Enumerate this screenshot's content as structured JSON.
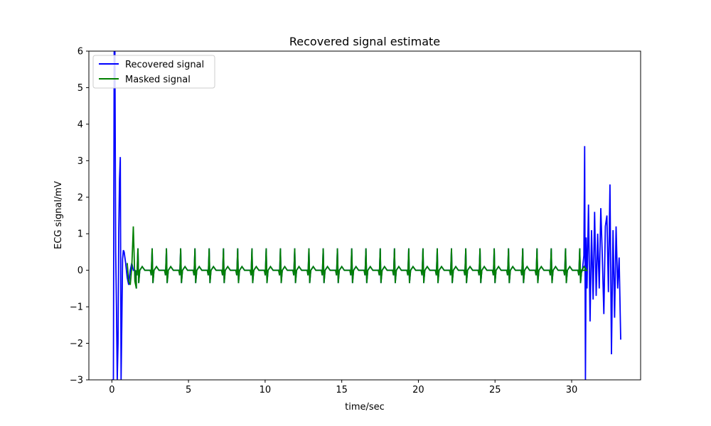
{
  "chart_data": {
    "type": "line",
    "title": "Recovered signal estimate",
    "xlabel": "time/sec",
    "ylabel": "ECG signal/mV",
    "xlim": [
      -1.5,
      34.5
    ],
    "ylim": [
      -3,
      6
    ],
    "xticks": [
      0,
      5,
      10,
      15,
      20,
      25,
      30
    ],
    "xtick_labels": [
      "0",
      "5",
      "10",
      "15",
      "20",
      "25",
      "30"
    ],
    "yticks": [
      -3,
      -2,
      -1,
      0,
      1,
      2,
      3,
      4,
      5,
      6
    ],
    "ytick_labels": [
      "−3",
      "−2",
      "−1",
      "0",
      "1",
      "2",
      "3",
      "4",
      "5",
      "6"
    ],
    "legend_position": "top-left",
    "grid": {
      "major_dotted_red_at_integers": true,
      "minor_red_every": 0.5,
      "fine_pink_every": 0.1,
      "x_range": [
        0,
        33.2
      ],
      "major_color": "#ff0000",
      "minor_color": "#ff9a9a",
      "fine_color": "#ffd6d6"
    },
    "series": [
      {
        "name": "Recovered signal",
        "color": "#0000ff",
        "x": [
          0.0,
          0.1,
          0.15,
          0.2,
          0.25,
          0.3,
          0.35,
          0.4,
          0.45,
          0.5,
          0.55,
          0.6,
          0.65,
          0.7,
          0.75,
          0.8,
          0.9,
          1.0,
          1.1,
          1.2,
          1.3,
          1.4,
          1.5,
          30.5,
          30.6,
          30.7,
          30.8,
          30.85,
          30.9,
          30.95,
          31.0,
          31.1,
          31.2,
          31.3,
          31.4,
          31.5,
          31.6,
          31.7,
          31.8,
          31.9,
          32.0,
          32.1,
          32.2,
          32.3,
          32.4,
          32.5,
          32.6,
          32.7,
          32.8,
          32.9,
          33.0,
          33.1,
          33.2
        ],
        "y": [
          -3.0,
          -3.0,
          6.0,
          6.0,
          0.5,
          -1.0,
          -3.0,
          -2.0,
          1.0,
          2.5,
          3.1,
          -3.0,
          -1.5,
          0.3,
          0.55,
          0.5,
          0.2,
          -0.2,
          -0.4,
          0.0,
          0.2,
          0.0,
          0.0,
          0.0,
          -0.1,
          0.0,
          0.4,
          3.4,
          -3.0,
          0.9,
          -0.5,
          1.8,
          -1.4,
          1.1,
          -0.8,
          1.6,
          -0.7,
          1.0,
          -0.5,
          1.7,
          0.4,
          -1.2,
          1.2,
          1.5,
          -0.6,
          2.35,
          -2.3,
          1.1,
          -1.3,
          1.2,
          -0.5,
          0.35,
          -1.9
        ]
      },
      {
        "name": "Masked signal",
        "color": "#008000",
        "beats": {
          "start": 1.4,
          "end": 30.6,
          "period": 0.93,
          "r_peak": 0.6,
          "s_trough": -0.35,
          "t_wave": 0.1
        },
        "extra_points": {
          "x": [
            1.0,
            1.1,
            1.2,
            1.3,
            1.4,
            1.5,
            1.6
          ],
          "y": [
            0.2,
            -0.3,
            -0.4,
            0.1,
            1.2,
            -0.3,
            -0.5
          ]
        }
      }
    ]
  }
}
